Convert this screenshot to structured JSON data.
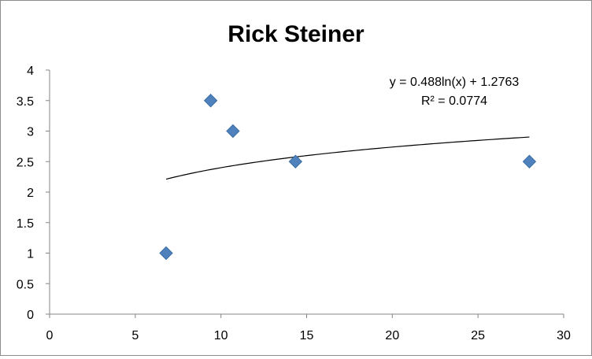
{
  "chart_data": {
    "type": "scatter",
    "title": "Rick Steiner",
    "xlabel": "",
    "ylabel": "",
    "xlim": [
      0,
      30
    ],
    "ylim": [
      0,
      4
    ],
    "x_ticks": [
      0,
      5,
      10,
      15,
      20,
      25,
      30
    ],
    "y_ticks": [
      0,
      0.5,
      1,
      1.5,
      2,
      2.5,
      3,
      3.5,
      4
    ],
    "x_tick_labels": [
      "0",
      "5",
      "10",
      "15",
      "20",
      "25",
      "30"
    ],
    "y_tick_labels": [
      "0",
      "0.5",
      "1",
      "1.5",
      "2",
      "2.5",
      "3",
      "3.5",
      "4"
    ],
    "grid": false,
    "legend": "none",
    "series": [
      {
        "x": [
          6.8,
          9.4,
          10.7,
          14.35,
          28.0
        ],
        "y": [
          1.0,
          3.5,
          3.0,
          2.5,
          2.5
        ],
        "color": "#4f81bd",
        "marker": "diamond"
      }
    ],
    "trendline": {
      "type": "logarithmic",
      "a": 0.488,
      "b": 1.2763,
      "x_range": [
        6.8,
        28.0
      ],
      "equation_label": "y = 0.488ln(x) + 1.2763",
      "r2_label": "R² = 0.0774",
      "color": "#000000"
    }
  }
}
